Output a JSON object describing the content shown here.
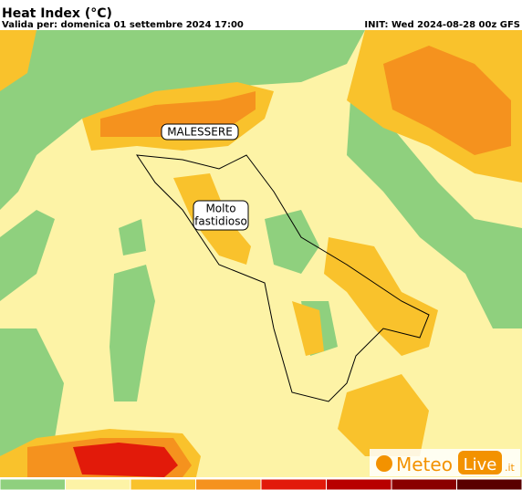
{
  "header": {
    "title": "Heat Index (°C)",
    "valid": "Valida per: domenica 01 settembre 2024 17:00",
    "init": "INIT: Wed 2024-08-28 00z GFS"
  },
  "labels": {
    "malessere": "MALESSERE",
    "molto": [
      "Molto",
      "fastidioso"
    ]
  },
  "logo": {
    "meteo": "Meteo",
    "live": "Live",
    "tld": ".it"
  },
  "colorbar": [
    "#8fd07e",
    "#fdf3a6",
    "#f9c22c",
    "#f5921e",
    "#e21a0a",
    "#b80000",
    "#8a0000",
    "#5a0000"
  ]
}
